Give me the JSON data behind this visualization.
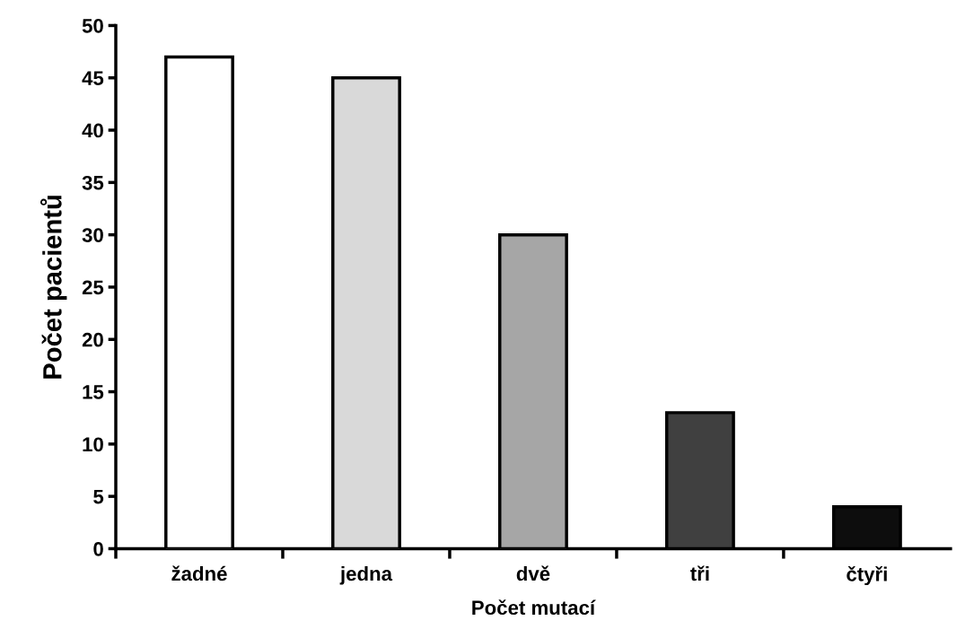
{
  "chart_data": {
    "type": "bar",
    "xlabel": "Počet mutací",
    "ylabel": "Počet pacientů",
    "categories": [
      "žadné",
      "jedna",
      "dvě",
      "tři",
      "čtyři"
    ],
    "values": [
      47,
      45,
      30,
      13,
      4
    ],
    "colors": [
      "#ffffff",
      "#d9d9d9",
      "#a6a6a6",
      "#404040",
      "#0d0d0d"
    ],
    "ylim": [
      0,
      50
    ],
    "yticks": [
      0,
      5,
      10,
      15,
      20,
      25,
      30,
      35,
      40,
      45,
      50
    ],
    "grid": false,
    "legend": false
  }
}
